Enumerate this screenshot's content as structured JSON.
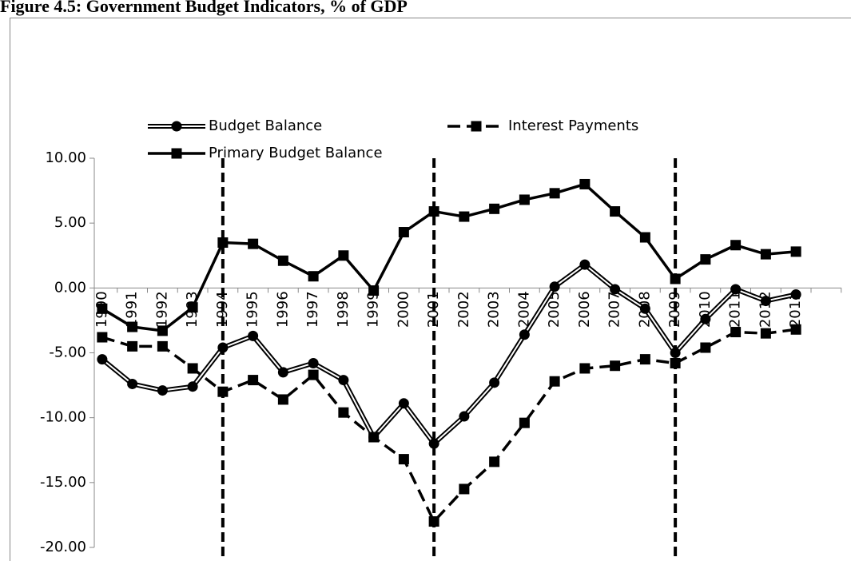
{
  "chart_data": {
    "type": "line",
    "title": "Figure 4.5: Government Budget Indicators, % of GDP",
    "categories": [
      "1990",
      "1991",
      "1992",
      "1993",
      "1994",
      "1995",
      "1996",
      "1997",
      "1998",
      "1999",
      "2000",
      "2001",
      "2002",
      "2003",
      "2004",
      "2005",
      "2006",
      "2007",
      "2008",
      "2009",
      "2010",
      "2011",
      "2012",
      "2013"
    ],
    "series": [
      {
        "name": "Budget Balance",
        "color": "#000000",
        "line_style": "double",
        "marker": "circle",
        "values": [
          -5.5,
          -7.4,
          -7.9,
          -7.6,
          -4.6,
          -3.7,
          -6.5,
          -5.8,
          -7.1,
          -11.5,
          -8.9,
          -12.0,
          -9.9,
          -7.3,
          -3.6,
          0.1,
          1.8,
          -0.1,
          -1.6,
          -5.0,
          -2.4,
          -0.1,
          -1.0,
          -0.5
        ]
      },
      {
        "name": "Interest Payments",
        "color": "#000000",
        "line_style": "dashed",
        "marker": "square",
        "values": [
          -3.8,
          -4.5,
          -4.5,
          -6.2,
          -8.0,
          -7.1,
          -8.6,
          -6.7,
          -9.6,
          -11.5,
          -13.2,
          -18.0,
          -15.5,
          -13.4,
          -10.4,
          -7.2,
          -6.2,
          -6.0,
          -5.5,
          -5.8,
          -4.6,
          -3.4,
          -3.5,
          -3.2
        ]
      },
      {
        "name": "Primary Budget Balance",
        "color": "#000000",
        "line_style": "solid",
        "marker": "square",
        "values": [
          -1.6,
          -3.0,
          -3.3,
          -1.5,
          3.5,
          3.4,
          2.1,
          0.9,
          2.5,
          -0.2,
          4.3,
          5.9,
          5.5,
          6.1,
          6.8,
          7.3,
          8.0,
          5.9,
          3.9,
          0.7,
          2.2,
          3.3,
          2.6,
          2.8
        ]
      }
    ],
    "event_lines": [
      "1994",
      "2001",
      "2009"
    ],
    "ylim": [
      -20,
      10
    ],
    "yticks": [
      {
        "value": -20,
        "label": "-20.00"
      },
      {
        "value": -15,
        "label": "-15.00"
      },
      {
        "value": -10,
        "label": "-10.00"
      },
      {
        "value": -5,
        "label": "-5.00"
      },
      {
        "value": 0,
        "label": "0.00"
      },
      {
        "value": 5,
        "label": "5.00"
      },
      {
        "value": 10,
        "label": "10.00"
      }
    ],
    "grid": false,
    "legend": "top"
  }
}
